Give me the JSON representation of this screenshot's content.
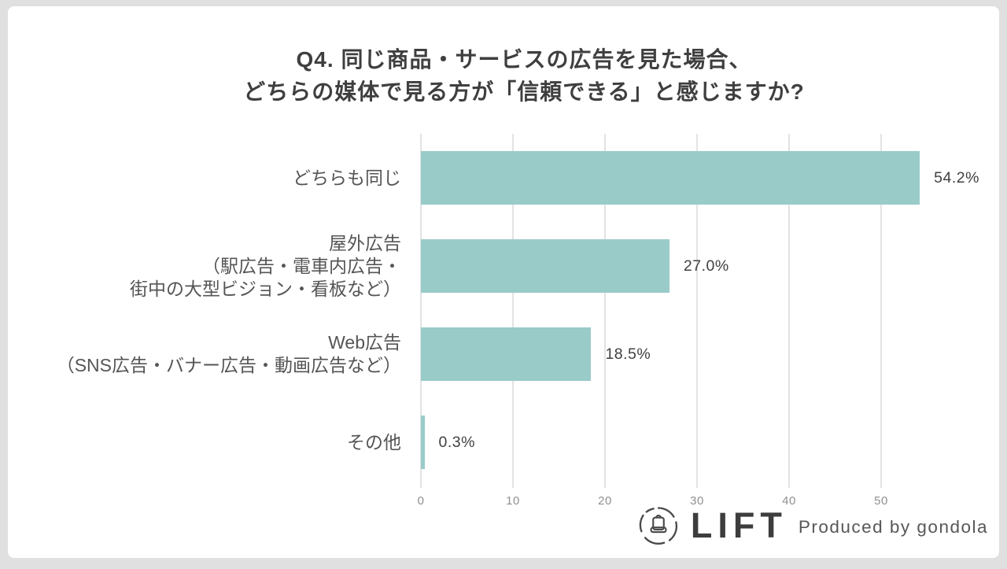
{
  "title": {
    "line1": "Q4. 同じ商品・サービスの広告を見た場合、",
    "line2": "どちらの媒体で見る方が「信頼できる」と感じますか?"
  },
  "chart_data": {
    "type": "bar",
    "orientation": "horizontal",
    "title": "Q4. 同じ商品・サービスの広告を見た場合、どちらの媒体で見る方が「信頼できる」と感じますか?",
    "categories": [
      [
        "どちらも同じ"
      ],
      [
        "屋外広告",
        "（駅広告・電車内広告・",
        "街中の大型ビジョン・看板など）"
      ],
      [
        "Web広告",
        "（SNS広告・バナー広告・動画広告など）"
      ],
      [
        "その他"
      ]
    ],
    "values": [
      54.2,
      27.0,
      18.5,
      0.3
    ],
    "value_labels": [
      "54.2%",
      "27.0%",
      "18.5%",
      "0.3%"
    ],
    "x_ticks": [
      0,
      10,
      20,
      30,
      40,
      50
    ],
    "xlim": [
      0,
      60
    ],
    "grid": true,
    "legend": false,
    "bar_color": "#99cbc9",
    "grid_color": "#e3e3e3"
  },
  "footer": {
    "brand": "LIFT",
    "produced_by": "Produced by gondola",
    "logo_icon": "gondola-lift-icon"
  }
}
